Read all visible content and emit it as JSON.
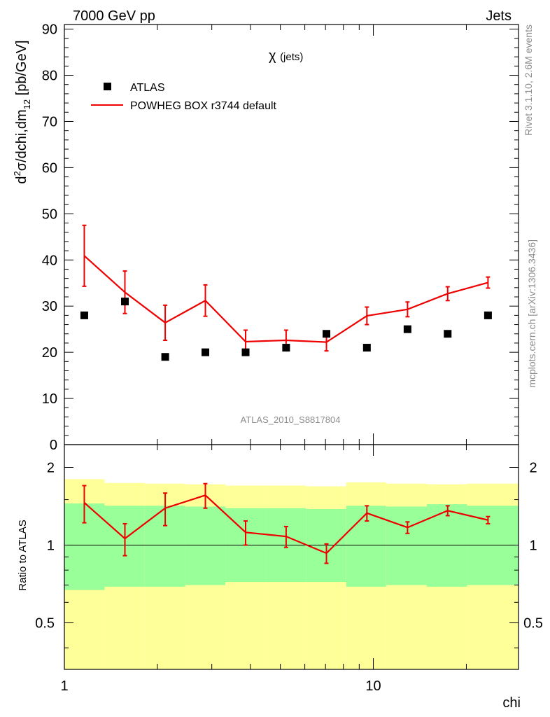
{
  "header": {
    "left": "7000 GeV pp",
    "right": "Jets"
  },
  "side_labels": {
    "rivet": "Rivet 3.1.10,  2.6M events",
    "mcplots": "mcplots.cern.ch [arXiv:1306.3436]"
  },
  "analysis_id": "ATLAS_2010_S8817804",
  "colors": {
    "mc": "#ee0000",
    "data": "#000000",
    "band_inner": "#99ff99",
    "band_outer": "#ffff99"
  },
  "chart_data": [
    {
      "type": "scatter",
      "panel": "main",
      "title": "χ (jets)",
      "title_symbol": "χ",
      "title_text": "(jets)",
      "ylabel": "d²σ/dchi,dm₁₂ [pb/GeV]",
      "ylabel_parts": {
        "a": "d",
        "b": "2",
        "c": "σ/dchi,dm",
        "d": "12",
        "e": " [pb/GeV]"
      },
      "xscale": "log",
      "xlim": [
        1,
        29.5
      ],
      "ylim": [
        0,
        91
      ],
      "yticks": [
        "0",
        "10",
        "20",
        "30",
        "40",
        "50",
        "60",
        "70",
        "80",
        "90"
      ],
      "legend_position": "top-left",
      "legend": [
        {
          "label": "ATLAS",
          "style": "marker"
        },
        {
          "label": "POWHEG BOX r3744 default",
          "style": "line"
        }
      ],
      "x": [
        1.16,
        1.57,
        2.12,
        2.86,
        3.86,
        5.22,
        7.05,
        9.53,
        12.9,
        17.4,
        23.5
      ],
      "series": [
        {
          "name": "ATLAS",
          "values": [
            28,
            31,
            19,
            20,
            20,
            21,
            24,
            21,
            25,
            24,
            28
          ]
        },
        {
          "name": "POWHEG BOX r3744 default",
          "values": [
            40.9,
            33.0,
            26.4,
            31.2,
            22.3,
            22.6,
            22.2,
            27.9,
            29.3,
            32.7,
            35.1
          ],
          "errors": [
            6.6,
            4.6,
            3.8,
            3.4,
            2.5,
            2.2,
            1.9,
            1.9,
            1.6,
            1.5,
            1.2
          ]
        }
      ]
    },
    {
      "type": "line",
      "panel": "ratio",
      "ylabel": "Ratio to ATLAS",
      "xlabel": "chi",
      "xscale": "log",
      "yscale": "log",
      "xlim": [
        1,
        29.5
      ],
      "ylim": [
        0.33,
        2.45
      ],
      "yticks": [
        "0.5",
        "1",
        "2"
      ],
      "xticks": [
        "1",
        "10"
      ],
      "bin_edges": [
        1.0,
        1.35,
        1.82,
        2.46,
        3.32,
        4.48,
        6.05,
        8.17,
        11.0,
        14.9,
        20.1,
        29.5
      ],
      "band_inner": {
        "lo": [
          0.67,
          0.69,
          0.69,
          0.7,
          0.72,
          0.72,
          0.72,
          0.69,
          0.7,
          0.69,
          0.7
        ],
        "hi": [
          1.45,
          1.42,
          1.42,
          1.41,
          1.39,
          1.39,
          1.38,
          1.42,
          1.41,
          1.44,
          1.42
        ]
      },
      "band_outer": {
        "lo": [
          0.33,
          0.33,
          0.33,
          0.33,
          0.33,
          0.33,
          0.33,
          0.33,
          0.33,
          0.33,
          0.33
        ],
        "hi": [
          1.8,
          1.74,
          1.73,
          1.72,
          1.7,
          1.7,
          1.69,
          1.75,
          1.73,
          1.72,
          1.73
        ]
      },
      "x": [
        1.16,
        1.57,
        2.12,
        2.86,
        3.86,
        5.22,
        7.05,
        9.53,
        12.9,
        17.4,
        23.5
      ],
      "series": [
        {
          "name": "POWHEG BOX r3744 default",
          "values": [
            1.46,
            1.06,
            1.39,
            1.56,
            1.12,
            1.08,
            0.93,
            1.33,
            1.17,
            1.36,
            1.25
          ],
          "errors": [
            0.24,
            0.15,
            0.2,
            0.17,
            0.12,
            0.1,
            0.08,
            0.09,
            0.06,
            0.06,
            0.04
          ]
        }
      ]
    }
  ]
}
